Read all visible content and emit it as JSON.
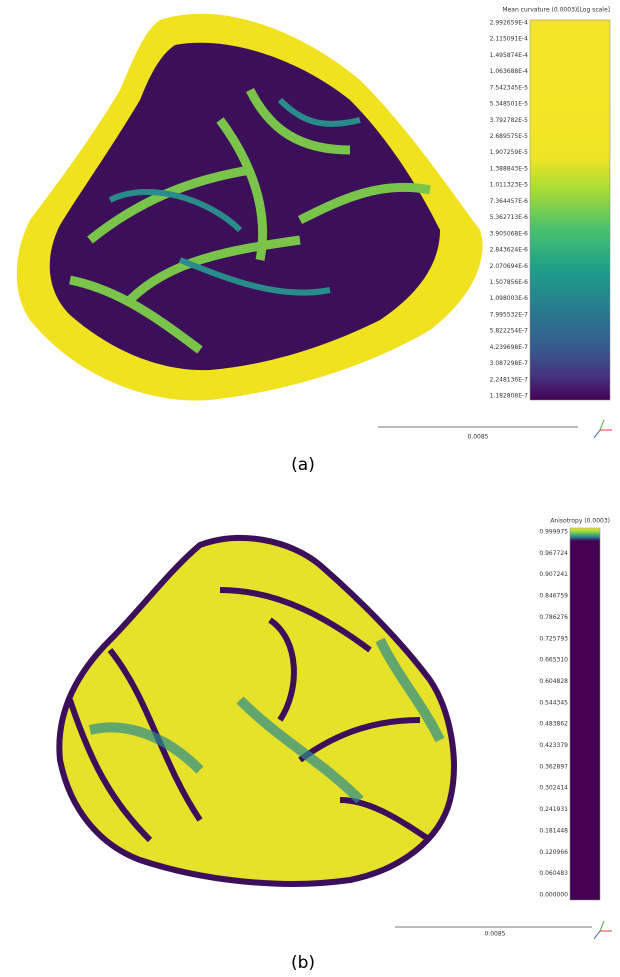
{
  "panels": [
    {
      "colorbar_title": "Mean curvature (0.0003)[Log scale]",
      "colorbar_labels": [
        "2.992659E-4",
        "2.115091E-4",
        "1.495874E-4",
        "1.063688E-4",
        "7.542345E-5",
        "5.348501E-5",
        "3.792782E-5",
        "2.689575E-5",
        "1.907259E-5",
        "1.388843E-5",
        "1.011323E-5",
        "7.364457E-6",
        "5.362713E-6",
        "3.905068E-6",
        "2.843624E-6",
        "2.070694E-6",
        "1.507856E-6",
        "1.098003E-6",
        "7.995532E-7",
        "5.822254E-7",
        "4.239698E-7",
        "3.087298E-7",
        "2.248136E-7",
        "1.182808E-7"
      ],
      "scale_label": "0.0085",
      "caption": "(a)"
    },
    {
      "colorbar_title": "Anisotropy (0.0003)",
      "colorbar_labels": [
        "0.999975",
        "0.967724",
        "0.907241",
        "0.846759",
        "0.786276",
        "0.725793",
        "0.665310",
        "0.604828",
        "0.544345",
        "0.483862",
        "0.423379",
        "0.362897",
        "0.302414",
        "0.241931",
        "0.181448",
        "0.120966",
        "0.060483",
        "0.000000"
      ],
      "scale_label": "0.0085",
      "caption": "(b)"
    }
  ]
}
